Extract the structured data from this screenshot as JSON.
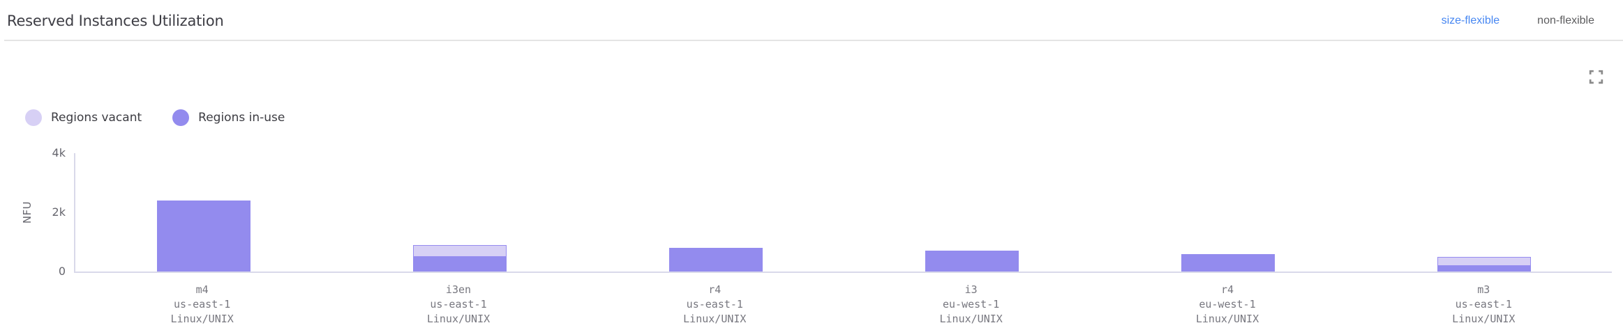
{
  "header": {
    "title": "Reserved Instances Utilization",
    "tabs": [
      {
        "label": "size-flexible",
        "active": true
      },
      {
        "label": "non-flexible",
        "active": false
      }
    ]
  },
  "legend": [
    {
      "label": "Regions vacant",
      "color": "vacant_fill"
    },
    {
      "label": "Regions in-use",
      "color": "in_use"
    }
  ],
  "colors": {
    "accent_blue": "#4787F2",
    "in_use": "#938BEE",
    "vacant_fill": "#D7D0F5",
    "vacant_border": "#968BF0",
    "axis_line": "#D9D9EA",
    "icon_gray": "#8A8A8A"
  },
  "icons": {
    "fullscreen": "fullscreen-expand-icon"
  },
  "chart_data": {
    "type": "bar",
    "stacked": true,
    "title": "Reserved Instances Utilization",
    "xlabel": "",
    "ylabel": "NFU",
    "ylim": [
      0,
      4000
    ],
    "yticks": [
      {
        "value": 0,
        "label": "0"
      },
      {
        "value": 2000,
        "label": "2k"
      },
      {
        "value": 4000,
        "label": "4k"
      }
    ],
    "grid": false,
    "legend_position": "top-left",
    "categories": [
      [
        "m4",
        "us-east-1",
        "Linux/UNIX"
      ],
      [
        "i3en",
        "us-east-1",
        "Linux/UNIX"
      ],
      [
        "r4",
        "us-east-1",
        "Linux/UNIX"
      ],
      [
        "i3",
        "eu-west-1",
        "Linux/UNIX"
      ],
      [
        "r4",
        "eu-west-1",
        "Linux/UNIX"
      ],
      [
        "m3",
        "us-east-1",
        "Linux/UNIX"
      ]
    ],
    "series": [
      {
        "name": "Regions in-use",
        "values": [
          2400,
          500,
          800,
          700,
          600,
          200
        ]
      },
      {
        "name": "Regions vacant",
        "values": [
          0,
          400,
          0,
          0,
          0,
          300
        ]
      }
    ]
  }
}
